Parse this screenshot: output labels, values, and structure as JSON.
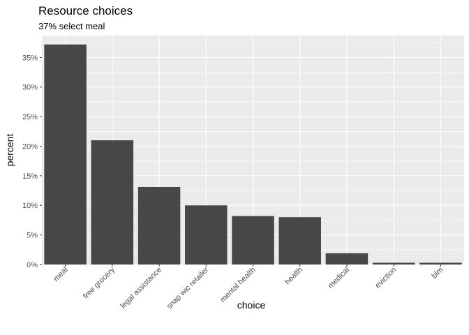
{
  "chart_data": {
    "type": "bar",
    "title": "Resource choices",
    "subtitle": "37% select meal",
    "xlabel": "choice",
    "ylabel": "percent",
    "categories": [
      "meal",
      "free grocery",
      "legal assistance",
      "snap wic retailer",
      "mental health",
      "health",
      "medical",
      "eviction",
      "blm"
    ],
    "values": [
      37.2,
      21.0,
      13.1,
      10.0,
      8.2,
      8.0,
      1.9,
      0.3,
      0.3
    ],
    "ylim": [
      0,
      38.7
    ],
    "yticks": [
      0,
      5,
      10,
      15,
      20,
      25,
      30,
      35
    ],
    "ytick_labels": [
      "0%",
      "5%",
      "10%",
      "15%",
      "20%",
      "25%",
      "30%",
      "35%"
    ],
    "grid": true,
    "colors": {
      "bar": "#474747",
      "panel": "#ebebeb",
      "grid": "#ffffff"
    }
  }
}
